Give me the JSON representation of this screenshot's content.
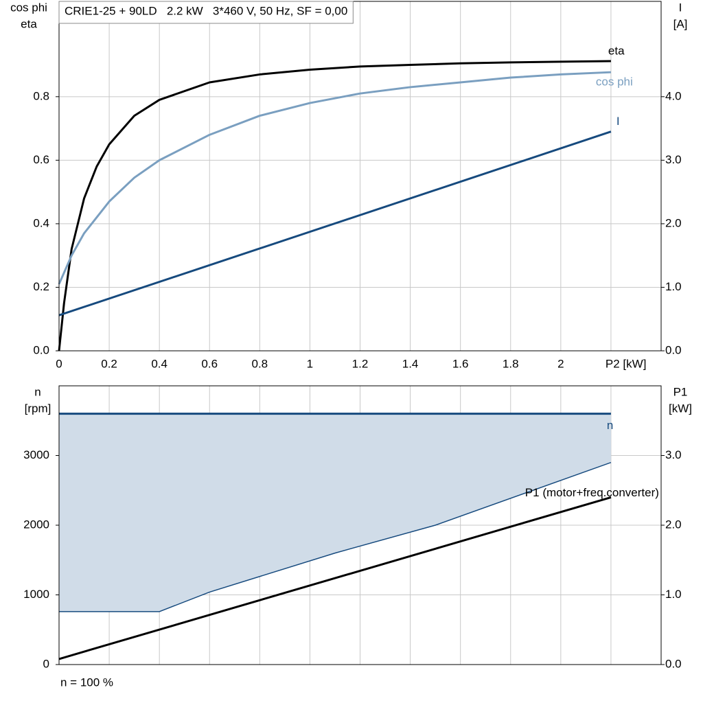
{
  "chart_data": [
    {
      "type": "line",
      "title": "CRIE1-25 + 90LD   2.2 kW   3*460 V, 50 Hz, SF = 0,00",
      "ylabel": [
        "cos phi",
        "eta"
      ],
      "y2label": [
        "I",
        "[A]"
      ],
      "xlim": [
        0,
        2.4
      ],
      "ylim": [
        0,
        1.1
      ],
      "y2lim": [
        0,
        5.5
      ],
      "grid": true,
      "xticks": [
        0,
        0.2,
        0.4,
        0.6,
        0.8,
        1.0,
        1.2,
        1.4,
        1.6,
        1.8,
        2.0,
        {
          "value": 2.2,
          "label": "P2 [kW]"
        }
      ],
      "yticks": [
        {
          "value": 0,
          "label": "0.0"
        },
        0.2,
        0.4,
        0.6,
        0.8
      ],
      "y2ticks": [
        {
          "value": 0,
          "label": "0.0"
        },
        {
          "value": 1,
          "label": "1.0"
        },
        {
          "value": 2,
          "label": "2.0"
        },
        {
          "value": 3,
          "label": "3.0"
        },
        {
          "value": 4,
          "label": "4.0"
        }
      ],
      "series": [
        {
          "name": "eta",
          "color": "#000000",
          "x": [
            0,
            0.02,
            0.05,
            0.1,
            0.15,
            0.2,
            0.3,
            0.4,
            0.6,
            0.8,
            1.0,
            1.2,
            1.4,
            1.6,
            1.8,
            2.0,
            2.2
          ],
          "values": [
            0,
            0.15,
            0.32,
            0.48,
            0.58,
            0.65,
            0.74,
            0.79,
            0.845,
            0.87,
            0.885,
            0.895,
            0.9,
            0.905,
            0.908,
            0.91,
            0.912
          ]
        },
        {
          "name": "cos phi",
          "color": "#7a9fc0",
          "x": [
            0,
            0.05,
            0.1,
            0.2,
            0.3,
            0.4,
            0.6,
            0.8,
            1.0,
            1.2,
            1.4,
            1.6,
            1.8,
            2.0,
            2.2
          ],
          "values": [
            0.21,
            0.3,
            0.37,
            0.47,
            0.545,
            0.6,
            0.68,
            0.74,
            0.78,
            0.81,
            0.83,
            0.845,
            0.86,
            0.87,
            0.877
          ]
        },
        {
          "name": "I",
          "color": "#164a7e",
          "axis": "y2",
          "x": [
            0,
            2.2
          ],
          "values": [
            0.56,
            3.45
          ]
        }
      ]
    },
    {
      "type": "line",
      "note": "n = 100 %",
      "ylabel": [
        "n",
        "[rpm]"
      ],
      "y2label": [
        "P1",
        "[kW]"
      ],
      "xlim": [
        0,
        2.4
      ],
      "ylim": [
        0,
        4000
      ],
      "y2lim": [
        0,
        4
      ],
      "grid": true,
      "xgrid": [
        0.2,
        0.4,
        0.6,
        0.8,
        1.0,
        1.2,
        1.4,
        1.6,
        1.8,
        2.0,
        2.2
      ],
      "yticks": [
        0,
        1000,
        2000,
        3000
      ],
      "y2ticks": [
        {
          "value": 0,
          "label": "0.0"
        },
        {
          "value": 1,
          "label": "1.0"
        },
        {
          "value": 2,
          "label": "2.0"
        },
        {
          "value": 3,
          "label": "3.0"
        }
      ],
      "range": {
        "color": "#d0dce8",
        "x": [
          0,
          0.4,
          0.6,
          1.1,
          1.5,
          2.2
        ],
        "min": [
          760,
          760,
          1040,
          1600,
          2000,
          2900
        ],
        "max": [
          3600,
          3600,
          3600,
          3600,
          3600,
          3600
        ]
      },
      "series": [
        {
          "name": "n",
          "color": "#164a7e",
          "x": [
            0,
            2.2
          ],
          "values": [
            3600,
            3600
          ]
        },
        {
          "name": "P1 (motor+freq.converter)",
          "color": "#000000",
          "axis": "y2",
          "x": [
            0,
            2.2
          ],
          "values": [
            0.08,
            2.4
          ]
        }
      ]
    }
  ]
}
